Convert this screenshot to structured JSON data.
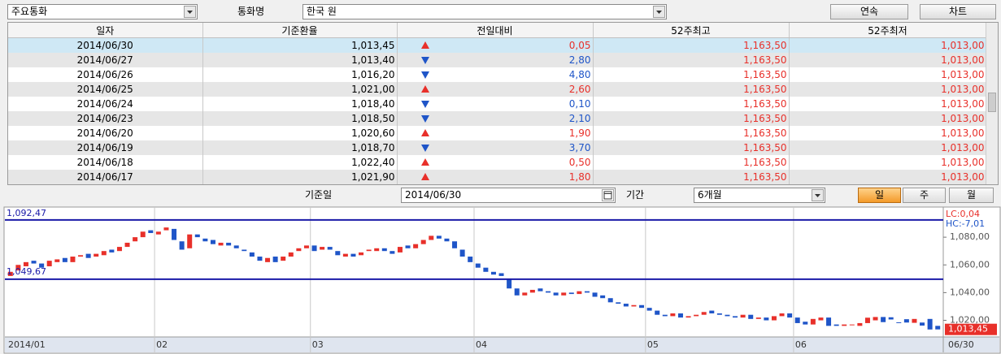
{
  "controls": {
    "market_select": "주요통화",
    "currency_label": "통화명",
    "currency_select": "한국 원",
    "continue_button": "연속",
    "chart_button": "차트",
    "date_label": "기준일",
    "date_input": "2014/06/30",
    "period_label": "기간",
    "period_select": "6개월",
    "day_button": "일",
    "week_button": "주",
    "month_button": "월"
  },
  "table": {
    "columns": [
      "일자",
      "기준환율",
      "전일대비",
      "52주최고",
      "52주최저"
    ],
    "rows": [
      {
        "date": "2014/06/30",
        "rate": "1,013,45",
        "direction": "up",
        "change": "0,05",
        "high52": "1,163,50",
        "low52": "1,013,00"
      },
      {
        "date": "2014/06/27",
        "rate": "1,013,40",
        "direction": "down",
        "change": "2,80",
        "high52": "1,163,50",
        "low52": "1,013,00"
      },
      {
        "date": "2014/06/26",
        "rate": "1,016,20",
        "direction": "down",
        "change": "4,80",
        "high52": "1,163,50",
        "low52": "1,013,00"
      },
      {
        "date": "2014/06/25",
        "rate": "1,021,00",
        "direction": "up",
        "change": "2,60",
        "high52": "1,163,50",
        "low52": "1,013,00"
      },
      {
        "date": "2014/06/24",
        "rate": "1,018,40",
        "direction": "down",
        "change": "0,10",
        "high52": "1,163,50",
        "low52": "1,013,00"
      },
      {
        "date": "2014/06/23",
        "rate": "1,018,50",
        "direction": "down",
        "change": "2,10",
        "high52": "1,163,50",
        "low52": "1,013,00"
      },
      {
        "date": "2014/06/20",
        "rate": "1,020,60",
        "direction": "up",
        "change": "1,90",
        "high52": "1,163,50",
        "low52": "1,013,00"
      },
      {
        "date": "2014/06/19",
        "rate": "1,018,70",
        "direction": "down",
        "change": "3,70",
        "high52": "1,163,50",
        "low52": "1,013,00"
      },
      {
        "date": "2014/06/18",
        "rate": "1,022,40",
        "direction": "up",
        "change": "0,50",
        "high52": "1,163,50",
        "low52": "1,013,00"
      },
      {
        "date": "2014/06/17",
        "rate": "1,021,90",
        "direction": "up",
        "change": "1,80",
        "high52": "1,163,50",
        "low52": "1,013,00"
      }
    ]
  },
  "chart_data": {
    "type": "candlestick",
    "up_color": "#e8302a",
    "down_color": "#1f55c8",
    "categories": [
      "2014/01",
      null,
      null,
      null,
      null,
      null,
      null,
      null,
      null,
      null,
      null,
      null,
      null,
      null,
      null,
      null,
      null,
      null,
      null,
      "02",
      null,
      null,
      null,
      null,
      null,
      null,
      null,
      null,
      null,
      null,
      null,
      null,
      null,
      null,
      null,
      null,
      null,
      null,
      null,
      "03",
      null,
      null,
      null,
      null,
      null,
      null,
      null,
      null,
      null,
      null,
      null,
      null,
      null,
      null,
      null,
      null,
      null,
      null,
      null,
      null,
      "04",
      null,
      null,
      null,
      null,
      null,
      null,
      null,
      null,
      null,
      null,
      null,
      null,
      null,
      null,
      null,
      null,
      null,
      null,
      null,
      null,
      null,
      "05",
      null,
      null,
      null,
      null,
      null,
      null,
      null,
      null,
      null,
      null,
      null,
      null,
      null,
      null,
      null,
      null,
      null,
      null,
      "06",
      null,
      null,
      null,
      null,
      null,
      null,
      null,
      null,
      null,
      null,
      null,
      null,
      null,
      null,
      null,
      null,
      null,
      "06/30"
    ],
    "open": [
      1052,
      1056,
      1059,
      1063,
      1061,
      1059,
      1062,
      1065,
      1062,
      1066,
      1068,
      1066,
      1067,
      1071,
      1070,
      1073,
      1077,
      1080,
      1085,
      1082,
      1085,
      1086,
      1077,
      1072,
      1082,
      1079,
      1078,
      1074,
      1076,
      1074,
      1071,
      1069,
      1066,
      1062,
      1066,
      1063,
      1066,
      1070,
      1072,
      1074,
      1071,
      1073,
      1070,
      1066,
      1068,
      1067,
      1070,
      1070,
      1072,
      1070,
      1069,
      1074,
      1072,
      1075,
      1078,
      1081,
      1079,
      1077,
      1071,
      1066,
      1061,
      1058,
      1055,
      1054,
      1050,
      1043,
      1038,
      1040,
      1043,
      1041,
      1040,
      1038,
      1040,
      1039,
      1041,
      1040,
      1038,
      1036,
      1033,
      1032,
      1030,
      1031,
      1029,
      1027,
      1024,
      1023,
      1025,
      1022,
      1023,
      1024,
      1027,
      1025,
      1024,
      1023,
      1022,
      1024,
      1021,
      1022,
      1020,
      1023,
      1025,
      1022,
      1019,
      1017,
      1020,
      1022,
      1017,
      1016,
      1017,
      1016,
      1018,
      1020,
      1022.4,
      1022.2,
      1018.6,
      1020.8,
      1018.2,
      1018.4,
      1021,
      1016
    ],
    "close": [
      1055,
      1060,
      1062,
      1061,
      1058,
      1063,
      1064,
      1062,
      1066,
      1067,
      1065,
      1068,
      1070,
      1069,
      1073,
      1076,
      1080,
      1084,
      1083,
      1084,
      1087,
      1078,
      1071,
      1082,
      1080,
      1077,
      1075,
      1076,
      1074,
      1072,
      1070,
      1066,
      1063,
      1065,
      1062,
      1066,
      1069,
      1072,
      1074,
      1070,
      1073,
      1071,
      1067,
      1068,
      1066,
      1069,
      1071,
      1072,
      1070,
      1068,
      1073,
      1072,
      1075,
      1078,
      1081,
      1079,
      1077,
      1072,
      1066,
      1062,
      1058,
      1055,
      1053,
      1052,
      1043,
      1038,
      1040,
      1042,
      1041,
      1040,
      1038,
      1040,
      1039,
      1041,
      1040,
      1037,
      1036,
      1033,
      1032,
      1030,
      1031,
      1029,
      1027,
      1024,
      1023,
      1025,
      1022,
      1023,
      1024,
      1026,
      1025,
      1024,
      1023,
      1022,
      1024,
      1021,
      1022,
      1020,
      1023,
      1025,
      1022,
      1018,
      1017,
      1021,
      1022,
      1016,
      1016,
      1017,
      1017,
      1018,
      1021.9,
      1022.4,
      1018.7,
      1020.6,
      1018.5,
      1018.4,
      1021,
      1016.2,
      1013.4,
      1013.45
    ],
    "ylim": [
      1008,
      1100
    ],
    "yticks": [
      {
        "value": 1020,
        "label": "1,020,00"
      },
      {
        "value": 1040,
        "label": "1,040,00"
      },
      {
        "value": 1060,
        "label": "1,060,00"
      },
      {
        "value": 1080,
        "label": "1,080,00"
      }
    ],
    "reference_lines": [
      {
        "value": 1092.47,
        "label": "1,092,47"
      },
      {
        "value": 1049.67,
        "label": "1,049,67"
      }
    ],
    "last_price": {
      "value": 1013.45,
      "label": "1,013,45"
    },
    "lc_label": "LC:0,04",
    "hc_label": "HC:-7,01"
  }
}
